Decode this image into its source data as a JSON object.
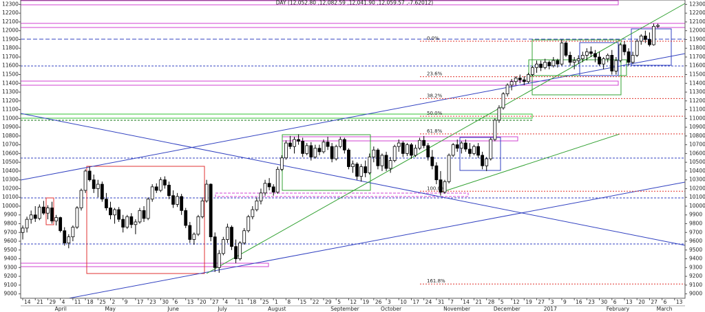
{
  "chart_data": {
    "type": "candlestick",
    "title": "DAY (12,052.80 ,12,082.59 ,12,041.90 ,12,059.57 ,-7.62012)",
    "categories": [
      "14",
      null,
      null,
      "21",
      null,
      null,
      "29",
      null,
      null,
      "4",
      null,
      null,
      "11",
      null,
      null,
      "18",
      null,
      null,
      "25",
      null,
      null,
      "2",
      null,
      null,
      "9",
      null,
      null,
      "17",
      null,
      null,
      "23",
      null,
      null,
      "30",
      null,
      null,
      "6",
      null,
      null,
      "13",
      null,
      null,
      "20",
      null,
      null,
      "27",
      null,
      null,
      "4",
      null,
      null,
      "11",
      null,
      null,
      "18",
      null,
      null,
      "25",
      null,
      null,
      "1",
      null,
      null,
      "8",
      null,
      null,
      "15",
      null,
      null,
      "22",
      null,
      null,
      "29",
      null,
      null,
      "5",
      null,
      null,
      "12",
      null,
      null,
      "19",
      null,
      null,
      "26",
      null,
      null,
      "3",
      null,
      null,
      "10",
      null,
      null,
      "17",
      null,
      null,
      "24",
      null,
      null,
      "31",
      null,
      null,
      "7",
      null,
      null,
      "14",
      null,
      null,
      "21",
      null,
      null,
      "28",
      null,
      null,
      "5",
      null,
      null,
      "12",
      null,
      null,
      "19",
      null,
      null,
      "27",
      null,
      null,
      "3",
      null,
      null,
      "9",
      null,
      null,
      "16",
      null,
      null,
      "23",
      null,
      null,
      "30",
      null,
      null,
      "6",
      null,
      null,
      "13",
      null,
      null,
      "20",
      null,
      null,
      "27",
      null,
      null,
      "6",
      null,
      null,
      "13",
      null,
      null
    ],
    "month_labels": [
      null,
      null,
      null,
      null,
      null,
      null,
      null,
      null,
      null,
      "April",
      null,
      null,
      null,
      null,
      null,
      null,
      null,
      null,
      null,
      null,
      null,
      "May",
      null,
      null,
      null,
      null,
      null,
      null,
      null,
      null,
      null,
      null,
      null,
      null,
      null,
      null,
      "June",
      null,
      null,
      null,
      null,
      null,
      null,
      null,
      null,
      null,
      null,
      null,
      "July",
      null,
      null,
      null,
      null,
      null,
      null,
      null,
      null,
      null,
      null,
      null,
      "August",
      null,
      null,
      null,
      null,
      null,
      null,
      null,
      null,
      null,
      null,
      null,
      null,
      null,
      null,
      "September",
      null,
      null,
      null,
      null,
      null,
      null,
      null,
      null,
      null,
      null,
      null,
      "October",
      null,
      null,
      null,
      null,
      null,
      null,
      null,
      null,
      null,
      null,
      null,
      null,
      null,
      null,
      "November",
      null,
      null,
      null,
      null,
      null,
      null,
      null,
      null,
      null,
      null,
      null,
      "December",
      null,
      null,
      null,
      null,
      null,
      null,
      null,
      null,
      null,
      null,
      null,
      "2017",
      null,
      null,
      null,
      null,
      null,
      null,
      null,
      null,
      null,
      null,
      null,
      null,
      null,
      null,
      "February",
      null,
      null,
      null,
      null,
      null,
      null,
      null,
      null,
      null,
      null,
      null,
      "March",
      null,
      null,
      null,
      null,
      null
    ],
    "ohlc": [
      [
        9700,
        9780,
        9620,
        9750
      ],
      [
        9750,
        9880,
        9700,
        9850
      ],
      [
        9850,
        9950,
        9800,
        9900
      ],
      [
        9900,
        10000,
        9820,
        9860
      ],
      [
        9860,
        10020,
        9840,
        9990
      ],
      [
        9990,
        10060,
        9900,
        9920
      ],
      [
        9920,
        10010,
        9850,
        9980
      ],
      [
        9980,
        10050,
        9800,
        9830
      ],
      [
        9830,
        9900,
        9780,
        9870
      ],
      [
        9870,
        9880,
        9700,
        9720
      ],
      [
        9720,
        9760,
        9550,
        9580
      ],
      [
        9580,
        9680,
        9520,
        9650
      ],
      [
        9650,
        9780,
        9600,
        9760
      ],
      [
        9760,
        10000,
        9740,
        9980
      ],
      [
        9980,
        10200,
        9950,
        10180
      ],
      [
        10180,
        10420,
        10150,
        10400
      ],
      [
        10400,
        10450,
        10280,
        10300
      ],
      [
        10300,
        10360,
        10150,
        10200
      ],
      [
        10200,
        10300,
        10100,
        10250
      ],
      [
        10250,
        10280,
        10050,
        10080
      ],
      [
        10080,
        10150,
        9950,
        9980
      ],
      [
        9980,
        10050,
        9850,
        9900
      ],
      [
        9900,
        9980,
        9800,
        9960
      ],
      [
        9960,
        9990,
        9820,
        9850
      ],
      [
        9850,
        9900,
        9700,
        9760
      ],
      [
        9760,
        9900,
        9740,
        9880
      ],
      [
        9880,
        9920,
        9750,
        9790
      ],
      [
        9790,
        9850,
        9680,
        9820
      ],
      [
        9820,
        9980,
        9800,
        9950
      ],
      [
        9950,
        10000,
        9820,
        9860
      ],
      [
        9860,
        10100,
        9840,
        10080
      ],
      [
        10080,
        10250,
        10050,
        10220
      ],
      [
        10220,
        10260,
        10150,
        10180
      ],
      [
        10180,
        10330,
        10160,
        10300
      ],
      [
        10300,
        10340,
        10200,
        10240
      ],
      [
        10240,
        10280,
        10080,
        10120
      ],
      [
        10120,
        10180,
        9980,
        10020
      ],
      [
        10020,
        10150,
        9990,
        10110
      ],
      [
        10110,
        10140,
        9900,
        9950
      ],
      [
        9950,
        9980,
        9750,
        9780
      ],
      [
        9780,
        9820,
        9580,
        9620
      ],
      [
        9620,
        9700,
        9560,
        9680
      ],
      [
        9680,
        9900,
        9660,
        9880
      ],
      [
        9880,
        10100,
        9860,
        10060
      ],
      [
        10060,
        10300,
        10040,
        10250
      ],
      [
        10250,
        10260,
        9600,
        9650
      ],
      [
        9650,
        9700,
        9250,
        9300
      ],
      [
        9300,
        9500,
        9240,
        9460
      ],
      [
        9460,
        9650,
        9440,
        9620
      ],
      [
        9620,
        9800,
        9580,
        9760
      ],
      [
        9760,
        9780,
        9500,
        9540
      ],
      [
        9540,
        9620,
        9350,
        9400
      ],
      [
        9400,
        9600,
        9380,
        9580
      ],
      [
        9580,
        9750,
        9560,
        9720
      ],
      [
        9720,
        9900,
        9700,
        9880
      ],
      [
        9880,
        10000,
        9850,
        9960
      ],
      [
        9960,
        10100,
        9940,
        10060
      ],
      [
        10060,
        10200,
        10020,
        10150
      ],
      [
        10150,
        10300,
        10120,
        10260
      ],
      [
        10260,
        10320,
        10180,
        10220
      ],
      [
        10220,
        10250,
        10120,
        10160
      ],
      [
        10160,
        10450,
        10140,
        10420
      ],
      [
        10420,
        10580,
        10400,
        10550
      ],
      [
        10550,
        10750,
        10530,
        10720
      ],
      [
        10720,
        10800,
        10650,
        10680
      ],
      [
        10680,
        10790,
        10600,
        10760
      ],
      [
        10760,
        10820,
        10700,
        10740
      ],
      [
        10740,
        10780,
        10560,
        10600
      ],
      [
        10600,
        10720,
        10580,
        10690
      ],
      [
        10690,
        10730,
        10520,
        10560
      ],
      [
        10560,
        10700,
        10540,
        10660
      ],
      [
        10660,
        10700,
        10580,
        10620
      ],
      [
        10620,
        10760,
        10600,
        10730
      ],
      [
        10730,
        10790,
        10640,
        10680
      ],
      [
        10680,
        10720,
        10500,
        10540
      ],
      [
        10540,
        10700,
        10520,
        10680
      ],
      [
        10680,
        10790,
        10660,
        10760
      ],
      [
        10760,
        10780,
        10600,
        10640
      ],
      [
        10640,
        10660,
        10420,
        10450
      ],
      [
        10450,
        10520,
        10380,
        10480
      ],
      [
        10480,
        10500,
        10300,
        10340
      ],
      [
        10340,
        10480,
        10280,
        10450
      ],
      [
        10450,
        10520,
        10330,
        10380
      ],
      [
        10380,
        10600,
        10360,
        10560
      ],
      [
        10560,
        10680,
        10500,
        10640
      ],
      [
        10640,
        10660,
        10420,
        10460
      ],
      [
        10460,
        10600,
        10400,
        10580
      ],
      [
        10580,
        10620,
        10400,
        10430
      ],
      [
        10430,
        10560,
        10380,
        10520
      ],
      [
        10520,
        10700,
        10500,
        10680
      ],
      [
        10680,
        10760,
        10620,
        10720
      ],
      [
        10720,
        10740,
        10560,
        10600
      ],
      [
        10600,
        10720,
        10570,
        10700
      ],
      [
        10700,
        10720,
        10540,
        10580
      ],
      [
        10580,
        10700,
        10560,
        10660
      ],
      [
        10660,
        10780,
        10640,
        10750
      ],
      [
        10750,
        10800,
        10660,
        10690
      ],
      [
        10690,
        10720,
        10520,
        10560
      ],
      [
        10560,
        10640,
        10420,
        10460
      ],
      [
        10460,
        10500,
        10250,
        10300
      ],
      [
        10300,
        10400,
        10120,
        10160
      ],
      [
        10160,
        10300,
        10140,
        10280
      ],
      [
        10280,
        10600,
        10260,
        10580
      ],
      [
        10580,
        10720,
        10560,
        10700
      ],
      [
        10700,
        10760,
        10620,
        10660
      ],
      [
        10660,
        10740,
        10600,
        10720
      ],
      [
        10720,
        10760,
        10620,
        10650
      ],
      [
        10650,
        10720,
        10560,
        10600
      ],
      [
        10600,
        10700,
        10580,
        10680
      ],
      [
        10680,
        10720,
        10550,
        10580
      ],
      [
        10580,
        10620,
        10420,
        10460
      ],
      [
        10460,
        10560,
        10400,
        10540
      ],
      [
        10540,
        10780,
        10520,
        10760
      ],
      [
        10760,
        11000,
        10740,
        10980
      ],
      [
        10980,
        11150,
        10950,
        11120
      ],
      [
        11120,
        11300,
        11100,
        11280
      ],
      [
        11280,
        11400,
        11250,
        11380
      ],
      [
        11380,
        11450,
        11320,
        11420
      ],
      [
        11420,
        11480,
        11380,
        11460
      ],
      [
        11460,
        11500,
        11400,
        11440
      ],
      [
        11440,
        11480,
        11380,
        11420
      ],
      [
        11420,
        11520,
        11400,
        11500
      ],
      [
        11500,
        11600,
        11480,
        11580
      ],
      [
        11580,
        11660,
        11520,
        11620
      ],
      [
        11620,
        11660,
        11540,
        11580
      ],
      [
        11580,
        11680,
        11560,
        11640
      ],
      [
        11640,
        11660,
        11560,
        11600
      ],
      [
        11600,
        11700,
        11580,
        11660
      ],
      [
        11660,
        11680,
        11580,
        11620
      ],
      [
        11620,
        11900,
        11600,
        11860
      ],
      [
        11860,
        11880,
        11700,
        11720
      ],
      [
        11720,
        11760,
        11600,
        11640
      ],
      [
        11640,
        11700,
        11560,
        11660
      ],
      [
        11660,
        11720,
        11620,
        11680
      ],
      [
        11680,
        11760,
        11640,
        11720
      ],
      [
        11720,
        11800,
        11660,
        11760
      ],
      [
        11760,
        11820,
        11700,
        11740
      ],
      [
        11740,
        11780,
        11640,
        11700
      ],
      [
        11700,
        11760,
        11600,
        11620
      ],
      [
        11620,
        11700,
        11560,
        11680
      ],
      [
        11680,
        11740,
        11640,
        11720
      ],
      [
        11720,
        11780,
        11500,
        11540
      ],
      [
        11540,
        11700,
        11500,
        11660
      ],
      [
        11660,
        11860,
        11640,
        11840
      ],
      [
        11840,
        11880,
        11720,
        11760
      ],
      [
        11760,
        11800,
        11600,
        11640
      ],
      [
        11640,
        11760,
        11620,
        11720
      ],
      [
        11720,
        11900,
        11700,
        11880
      ],
      [
        11880,
        11960,
        11840,
        11940
      ],
      [
        11940,
        12000,
        11860,
        11900
      ],
      [
        11900,
        11980,
        11820,
        11840
      ],
      [
        11840,
        12080,
        11830,
        12050
      ],
      [
        12050,
        12080,
        12030,
        12060
      ],
      null,
      null,
      null,
      null,
      null,
      null
    ],
    "up_color": "#ffffff",
    "down_color": "#000000",
    "ylim": [
      8950,
      12350
    ],
    "yticks": [
      9000,
      9100,
      9200,
      9300,
      9400,
      9500,
      9600,
      9700,
      9800,
      9900,
      10000,
      10100,
      10200,
      10300,
      10400,
      10500,
      10600,
      10700,
      10800,
      10900,
      11000,
      11100,
      11200,
      11300,
      11400,
      11500,
      11600,
      11700,
      11800,
      11900,
      12000,
      12100,
      12200,
      12300
    ],
    "fib_levels": [
      {
        "label": "0.0%",
        "value": 11880
      },
      {
        "label": "23.6%",
        "value": 11476
      },
      {
        "label": "38.2%",
        "value": 11227
      },
      {
        "label": "50.0%",
        "value": 11025
      },
      {
        "label": "61.8%",
        "value": 10823
      },
      {
        "label": "100.0%",
        "value": 10170
      },
      {
        "label": "161.8%",
        "value": 9113
      }
    ],
    "fib_color": "#e0302a"
  }
}
